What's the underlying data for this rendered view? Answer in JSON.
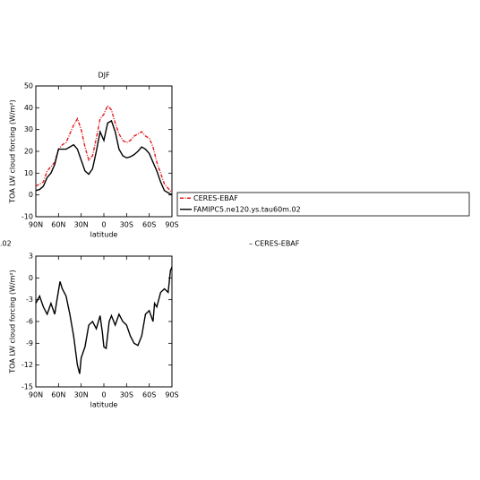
{
  "chart_data": [
    {
      "type": "line",
      "title": "DJF",
      "xlabel": "latitude",
      "ylabel": "TOA LW cloud forcing (W/m²)",
      "xlim": [
        90,
        -90
      ],
      "xticks": [
        {
          "value": 90,
          "label": "90N"
        },
        {
          "value": 60,
          "label": "60N"
        },
        {
          "value": 30,
          "label": "30N"
        },
        0,
        {
          "value": -30,
          "label": "30S"
        },
        {
          "value": -60,
          "label": "60S"
        },
        {
          "value": -90,
          "label": "90S"
        }
      ],
      "ylim": [
        -10,
        50
      ],
      "yticks": [
        -10,
        0,
        10,
        20,
        30,
        40,
        50
      ],
      "legend": "right",
      "x": [
        90,
        85,
        80,
        75,
        70,
        65,
        60,
        55,
        50,
        45,
        40,
        35,
        30,
        25,
        20,
        15,
        10,
        5,
        0,
        -5,
        -10,
        -15,
        -20,
        -25,
        -30,
        -35,
        -40,
        -45,
        -50,
        -55,
        -60,
        -65,
        -70,
        -75,
        -80,
        -85,
        -90
      ],
      "series": [
        {
          "name": "CERES-EBAF",
          "color": "#e41a1c",
          "dash": true,
          "values": [
            4,
            5,
            6,
            11,
            13,
            15,
            21,
            23,
            24,
            28,
            32,
            35,
            30,
            22,
            16,
            18,
            26,
            35,
            37,
            41,
            39,
            33,
            28,
            25,
            24,
            25,
            27,
            28,
            29,
            27,
            26,
            22,
            15,
            10,
            5,
            3,
            1
          ]
        },
        {
          "name": "FAMIPC5.ne120.ys.tau60m.02",
          "color": "#000000",
          "dash": false,
          "values": [
            2,
            2.5,
            4,
            8,
            10,
            14,
            21,
            21,
            21,
            22,
            23,
            21,
            16,
            11,
            9.5,
            12,
            20,
            29,
            25,
            33,
            34,
            29,
            21,
            18,
            17,
            17.5,
            18.5,
            20,
            22,
            21,
            19,
            15,
            11,
            6,
            2,
            1,
            0
          ]
        }
      ]
    },
    {
      "type": "line",
      "title_left": ".02",
      "title_right": "– CERES-EBAF",
      "xlabel": "latitude",
      "ylabel": "TOA LW cloud forcing (W/m²)",
      "xlim": [
        90,
        -90
      ],
      "xticks": [
        {
          "value": 90,
          "label": "90N"
        },
        {
          "value": 60,
          "label": "60N"
        },
        {
          "value": 30,
          "label": "30N"
        },
        0,
        {
          "value": -30,
          "label": "30S"
        },
        {
          "value": -60,
          "label": "60S"
        },
        {
          "value": -90,
          "label": "90S"
        }
      ],
      "ylim": [
        -15,
        3
      ],
      "yticks": [
        -15,
        -12,
        -9,
        -6,
        -3,
        0,
        3
      ],
      "x": [
        90,
        85,
        80,
        75,
        70,
        65,
        62,
        58,
        55,
        50,
        45,
        40,
        35,
        32,
        30,
        25,
        20,
        15,
        10,
        5,
        2,
        0,
        -3,
        -7,
        -10,
        -15,
        -20,
        -25,
        -30,
        -35,
        -40,
        -45,
        -50,
        -55,
        -60,
        -65,
        -67,
        -70,
        -75,
        -80,
        -85,
        -88,
        -90
      ],
      "series": [
        {
          "color": "#000000",
          "dash": false,
          "values": [
            -3.5,
            -2.5,
            -4,
            -5,
            -3.5,
            -5,
            -3,
            -0.5,
            -1.5,
            -2.5,
            -5,
            -8,
            -12,
            -13.2,
            -11,
            -9.5,
            -6.5,
            -6,
            -7,
            -5.2,
            -7.5,
            -9.5,
            -9.7,
            -6,
            -5.2,
            -6.5,
            -5,
            -6,
            -6.5,
            -8,
            -9,
            -9.3,
            -8,
            -5,
            -4.5,
            -6,
            -3.5,
            -4,
            -2,
            -1.5,
            -2,
            1,
            1.5
          ]
        }
      ]
    }
  ]
}
